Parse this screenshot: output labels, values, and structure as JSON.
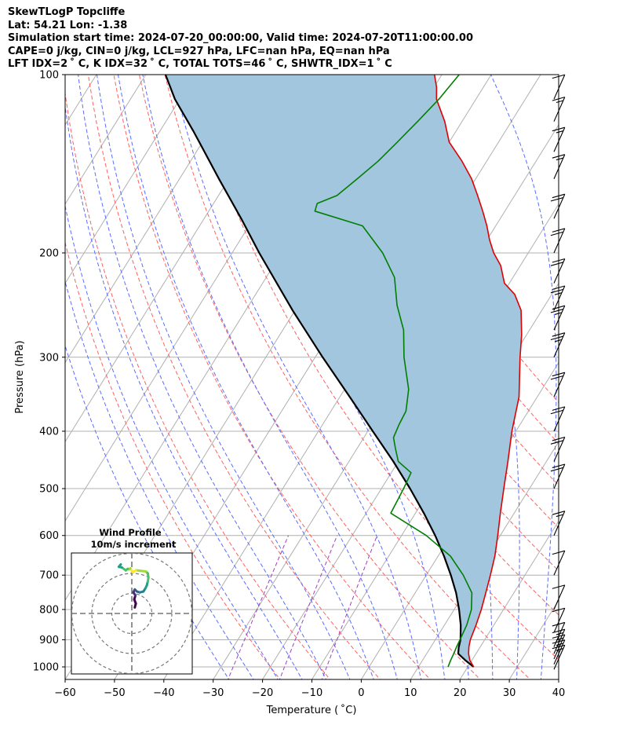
{
  "header": {
    "line1": "SkewTLogP Topcliffe",
    "line2": "Lat: 54.21   Lon: -1.38",
    "line3": "Simulation start time: 2024-07-20_00:00:00, Valid time: 2024-07-20T11:00:00.00",
    "line4": "CAPE=0 j/kg, CIN=0 j/kg, LCL=927 hPa, LFC=nan hPa, EQ=nan hPa",
    "line5": "LFT IDX=2 ˚ C, K IDX=32 ˚ C, TOTAL TOTS=46 ˚ C, SHWTR_IDX=1 ˚ C"
  },
  "colors": {
    "temperature": "#e00000",
    "dewpoint": "#007f00",
    "parcel": "#000000",
    "shade": "#a3c6df",
    "dry_adiabat": "#ff6060",
    "moist_adiabat": "#5a6cff",
    "mixing_ratio": "#a040c0",
    "isotherm": "#b0b0b0"
  },
  "chart_data": [
    {
      "type": "line",
      "chart": "skew-t log-p",
      "xlabel": "Temperature ( ˚C)",
      "ylabel": "Pressure (hPa)",
      "xlim": [
        -60,
        40
      ],
      "ylim": [
        1050,
        100
      ],
      "y_scale": "log",
      "x_ticks": [
        "−60",
        "−50",
        "−40",
        "−30",
        "−20",
        "−10",
        "0",
        "10",
        "20",
        "30",
        "40"
      ],
      "y_ticks": [
        "100",
        "200",
        "300",
        "400",
        "500",
        "600",
        "700",
        "800",
        "900",
        "1000"
      ],
      "grid": true,
      "series": [
        {
          "key": "temperature",
          "pressure": [
            1000,
            975,
            950,
            925,
            900,
            850,
            800,
            750,
            700,
            650,
            600,
            550,
            500,
            450,
            400,
            350,
            300,
            275,
            250,
            235,
            225,
            210,
            200,
            190,
            180,
            170,
            160,
            150,
            140,
            130,
            120,
            110,
            105,
            100
          ],
          "temp": [
            21.2,
            19.6,
            18.5,
            17.7,
            17.1,
            16.4,
            15.5,
            14.3,
            13.0,
            11.5,
            9.5,
            7.2,
            4.8,
            2.2,
            -0.8,
            -3.7,
            -8.5,
            -11.0,
            -14.2,
            -17.5,
            -21.0,
            -24.0,
            -27.0,
            -29.5,
            -31.8,
            -34.5,
            -37.5,
            -40.8,
            -45.0,
            -50.0,
            -53.5,
            -58.0,
            -59.5,
            -61.5
          ]
        },
        {
          "key": "dewpoint",
          "pressure": [
            1000,
            975,
            950,
            925,
            900,
            850,
            800,
            750,
            700,
            650,
            600,
            550,
            500,
            470,
            450,
            430,
            410,
            390,
            370,
            340,
            300,
            270,
            245,
            220,
            200,
            180,
            170,
            165,
            160,
            150,
            140,
            130,
            120,
            110,
            100
          ],
          "temp": [
            16.0,
            15.7,
            15.5,
            15.2,
            15.0,
            14.5,
            13.5,
            11.5,
            7.5,
            2.5,
            -5.0,
            -15.0,
            -15.5,
            -16.0,
            -20.0,
            -22.0,
            -24.0,
            -24.5,
            -24.8,
            -27.0,
            -32.0,
            -35.5,
            -40.0,
            -44.0,
            -49.5,
            -57.0,
            -68.5,
            -69.0,
            -66.0,
            -64.0,
            -62.0,
            -60.5,
            -59.0,
            -57.5,
            -56.5
          ]
        },
        {
          "key": "parcel",
          "pressure": [
            1000,
            975,
            950,
            927,
            900,
            850,
            800,
            750,
            700,
            650,
            600,
            550,
            500,
            450,
            400,
            350,
            300,
            250,
            200,
            175,
            150,
            125,
            110,
            100
          ],
          "temp": [
            21.2,
            18.7,
            16.4,
            15.7,
            15.1,
            13.3,
            11.0,
            8.3,
            5.0,
            1.2,
            -3.2,
            -8.3,
            -14.2,
            -21.0,
            -29.0,
            -38.0,
            -48.5,
            -60.5,
            -74.5,
            -82.5,
            -92.0,
            -103.0,
            -111.0,
            -116.0
          ]
        }
      ],
      "wind_barbs": [
        {
          "p": 1010,
          "speed_kt": 15
        },
        {
          "p": 990,
          "speed_kt": 15
        },
        {
          "p": 970,
          "speed_kt": 15
        },
        {
          "p": 950,
          "speed_kt": 15
        },
        {
          "p": 925,
          "speed_kt": 10
        },
        {
          "p": 875,
          "speed_kt": 10
        },
        {
          "p": 800,
          "speed_kt": 10
        },
        {
          "p": 700,
          "speed_kt": 10
        },
        {
          "p": 600,
          "speed_kt": 15
        },
        {
          "p": 500,
          "speed_kt": 20
        },
        {
          "p": 450,
          "speed_kt": 20
        },
        {
          "p": 400,
          "speed_kt": 20
        },
        {
          "p": 350,
          "speed_kt": 20
        },
        {
          "p": 300,
          "speed_kt": 25
        },
        {
          "p": 270,
          "speed_kt": 25
        },
        {
          "p": 250,
          "speed_kt": 25
        },
        {
          "p": 225,
          "speed_kt": 20
        },
        {
          "p": 200,
          "speed_kt": 20
        },
        {
          "p": 175,
          "speed_kt": 20
        },
        {
          "p": 150,
          "speed_kt": 15
        },
        {
          "p": 135,
          "speed_kt": 15
        },
        {
          "p": 120,
          "speed_kt": 15
        },
        {
          "p": 110,
          "speed_kt": 10
        }
      ]
    },
    {
      "type": "line",
      "chart": "hodograph",
      "title": "Wind Profile",
      "subtitle": "10m/s increment",
      "rings_ms": [
        10,
        20,
        30
      ],
      "u": [
        1.5,
        2.0,
        1.2,
        1.8,
        0.8,
        1.5,
        2.5,
        4.0,
        5.8,
        6.8,
        7.5,
        8.0,
        8.3,
        8.0,
        7.0,
        4.5,
        2.0,
        0.5,
        -0.8,
        -1.5,
        -2.0,
        -3.0,
        -5.0,
        -6.5,
        -5.5
      ],
      "v": [
        3.0,
        5.0,
        7.0,
        9.0,
        10.5,
        12.0,
        11.0,
        10.5,
        11.0,
        12.5,
        14.0,
        16.0,
        18.0,
        20.0,
        21.0,
        21.3,
        21.6,
        20.5,
        22.5,
        22.0,
        22.3,
        21.5,
        23.0,
        23.3,
        24.5
      ],
      "colormap": "viridis"
    }
  ]
}
